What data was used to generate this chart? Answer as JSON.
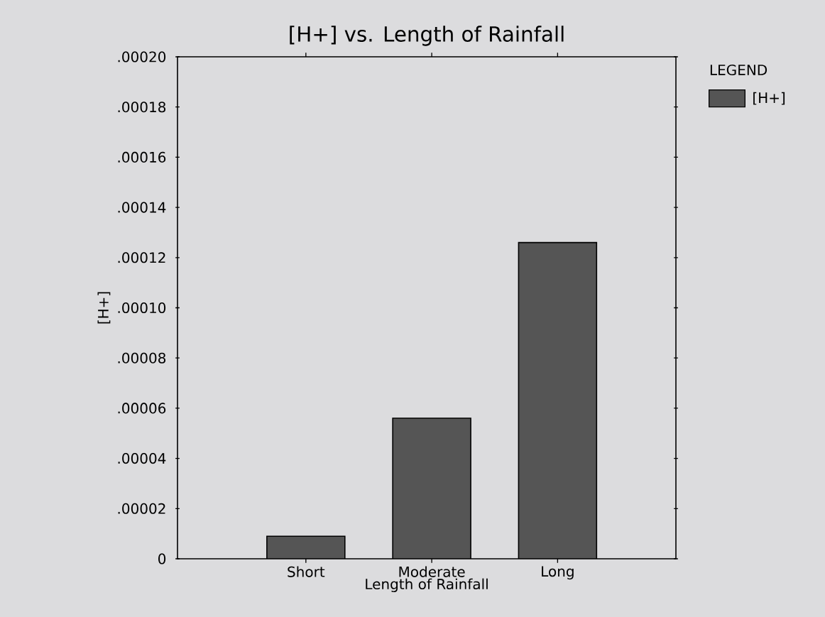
{
  "chart_data": {
    "type": "bar",
    "title": "[H+] vs. Length of Rainfall",
    "xlabel": "Length of Rainfall",
    "ylabel": "[H+]",
    "legend_title": "LEGEND",
    "categories": [
      "Short",
      "Moderate",
      "Long"
    ],
    "series": [
      {
        "name": "[H+]",
        "color": "#555555",
        "values": [
          9e-06,
          5.6e-05,
          0.000126
        ]
      }
    ],
    "ylim": [
      0,
      0.0002
    ],
    "yticks": [
      {
        "value": 0,
        "label": "0"
      },
      {
        "value": 2e-05,
        "label": ".00002"
      },
      {
        "value": 4e-05,
        "label": ".00004"
      },
      {
        "value": 6e-05,
        "label": ".00006"
      },
      {
        "value": 8e-05,
        "label": ".00008"
      },
      {
        "value": 0.0001,
        "label": ".00010"
      },
      {
        "value": 0.00012,
        "label": ".00012"
      },
      {
        "value": 0.00014,
        "label": ".00014"
      },
      {
        "value": 0.00016,
        "label": ".00016"
      },
      {
        "value": 0.00018,
        "label": ".00018"
      },
      {
        "value": 0.0002,
        "label": ".00020"
      }
    ],
    "legend": "top right",
    "grid": false
  }
}
